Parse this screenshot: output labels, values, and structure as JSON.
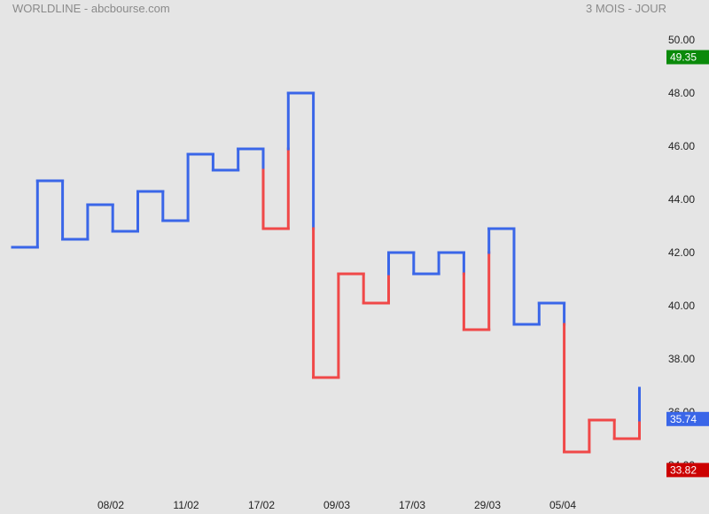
{
  "header": {
    "title": "WORLDLINE - abcbourse.com",
    "period": "3 MOIS - JOUR"
  },
  "chart_data": {
    "type": "line",
    "style": "kagi",
    "ylim": [
      33.5,
      50.5
    ],
    "y_ticks": [
      "34.00",
      "36.00",
      "38.00",
      "40.00",
      "42.00",
      "44.00",
      "46.00",
      "48.00",
      "50.00"
    ],
    "x_tick_labels": [
      "08/02",
      "11/02",
      "17/02",
      "09/03",
      "17/03",
      "29/03",
      "05/04"
    ],
    "kagi_levels": [
      42.2,
      44.7,
      42.5,
      43.8,
      42.8,
      44.3,
      43.2,
      45.7,
      45.1,
      45.9,
      42.9,
      48.0,
      37.3,
      41.2,
      40.1,
      42.0,
      41.2,
      42.0,
      39.1,
      42.9,
      39.3,
      40.1,
      34.5,
      35.7,
      35.0,
      36.9
    ],
    "colors": {
      "yang": "#3a66e8",
      "yin": "#f04848"
    },
    "badges": [
      {
        "label": "49.35",
        "value": 49.35,
        "color": "#0a8a0a"
      },
      {
        "label": "35.74",
        "value": 35.74,
        "color": "#3a66e8"
      },
      {
        "label": "33.82",
        "value": 33.82,
        "color": "#cc0000"
      }
    ],
    "grid": false,
    "legend": "none"
  }
}
